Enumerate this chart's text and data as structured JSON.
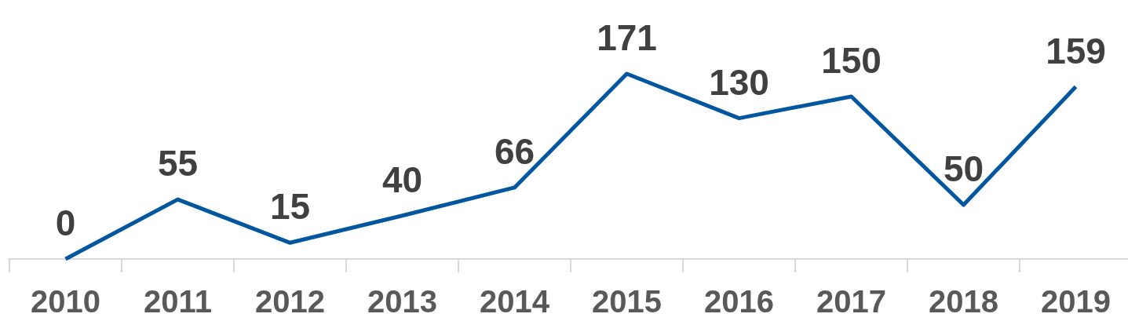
{
  "chart_data": {
    "type": "line",
    "categories": [
      "2010",
      "2011",
      "2012",
      "2013",
      "2014",
      "2015",
      "2016",
      "2017",
      "2018",
      "2019"
    ],
    "series": [
      {
        "color": "#0057a0",
        "values": [
          0,
          55,
          15,
          40,
          66,
          171,
          130,
          150,
          50,
          159
        ]
      }
    ],
    "data_labels": true,
    "marker": "none",
    "line_style": "solid"
  }
}
